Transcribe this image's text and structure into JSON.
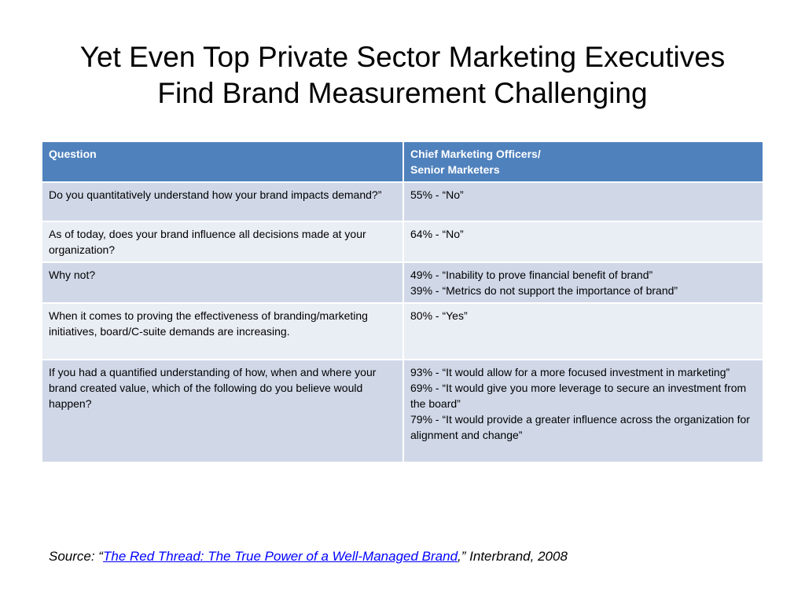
{
  "title": {
    "line1": "Yet Even Top Private Sector Marketing Executives",
    "line2": "Find Brand Measurement Challenging"
  },
  "table": {
    "headers": {
      "question": "Question",
      "answer_line1": "Chief Marketing Officers/",
      "answer_line2": "Senior Marketers"
    },
    "rows": [
      {
        "question": "Do you quantitatively understand how your brand impacts demand?”",
        "answers": [
          "55%  - “No”"
        ]
      },
      {
        "question": "As of today, does your brand influence all decisions made at your organization?",
        "answers": [
          "64%  - “No”"
        ]
      },
      {
        "question": "Why not?",
        "answers": [
          "49%  - “Inability to prove financial benefit of brand”",
          "39%  - “Metrics do not support the importance of brand”"
        ]
      },
      {
        "question": "When it comes to proving the effectiveness of branding/marketing initiatives, board/C-suite demands are increasing.",
        "answers": [
          "80%  - “Yes”"
        ]
      },
      {
        "question": "If you had a quantified understanding of how, when and where your brand created value, which of the following do you believe would happen?",
        "answers": [
          "93%   - “It would allow for a more focused investment in marketing”",
          "69%  - “It would give you more leverage to secure an investment from the board”",
          "79%  - “It would provide a greater influence across the organization for alignment and change”"
        ]
      }
    ]
  },
  "source": {
    "prefix": "Source: “",
    "link_text": "The Red Thread: The True Power of a Well-Managed Brand",
    "suffix": ",” Interbrand, 2008"
  },
  "colors": {
    "header_bg": "#4f81bd",
    "row_dark": "#d0d8e8",
    "row_light": "#e9edf4",
    "link": "#0000ff"
  }
}
